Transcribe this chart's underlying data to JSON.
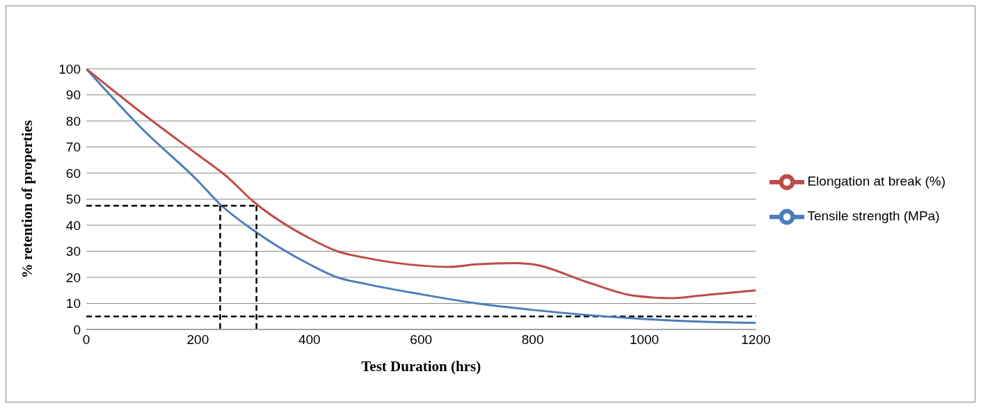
{
  "chart_data": {
    "type": "line",
    "xlabel": "Test Duration (hrs)",
    "ylabel": "% retention of properties",
    "xlim": [
      0,
      1200
    ],
    "xticks": [
      0,
      200,
      400,
      600,
      800,
      1000,
      1200
    ],
    "ylim": [
      0,
      100
    ],
    "yticks": [
      0,
      10,
      20,
      30,
      40,
      50,
      60,
      70,
      80,
      90,
      100
    ],
    "grid": "y",
    "legend": "right",
    "marker": "none",
    "line_style": "solid",
    "series": [
      {
        "name": "Tensile strength (MPa)",
        "color": "#4a7ebb",
        "x": [
          0,
          100,
          200,
          240,
          300,
          400,
          450,
          500,
          600,
          700,
          800,
          900,
          1000,
          1100,
          1200
        ],
        "values": [
          100,
          77,
          57,
          48,
          38,
          25,
          20,
          17.5,
          13.5,
          10,
          7.5,
          5.5,
          4,
          3,
          2.5
        ]
      },
      {
        "name": "Elongation at break (%)",
        "color": "#be4b48",
        "x": [
          0,
          100,
          200,
          250,
          300,
          400,
          450,
          500,
          600,
          650,
          700,
          770,
          800,
          900,
          980,
          1050,
          1100,
          1200
        ],
        "values": [
          100,
          83,
          67,
          59,
          49,
          35,
          30,
          27.5,
          24.5,
          24,
          25,
          25.5,
          25,
          18,
          13,
          12,
          13,
          15
        ]
      },
      {
        "color": "#000000",
        "line_style": "dashed",
        "x": [
          0,
          305
        ],
        "values": [
          47.5,
          47.5
        ]
      },
      {
        "color": "#000000",
        "line_style": "dashed",
        "x": [
          240,
          240
        ],
        "values": [
          47.5,
          0
        ]
      },
      {
        "color": "#000000",
        "line_style": "dashed",
        "x": [
          305,
          305
        ],
        "values": [
          47.5,
          0
        ]
      }
    ],
    "ref_lines": [
      {
        "axis": "y",
        "value": 5,
        "color": "#000000",
        "line_style": "dashed"
      }
    ]
  }
}
